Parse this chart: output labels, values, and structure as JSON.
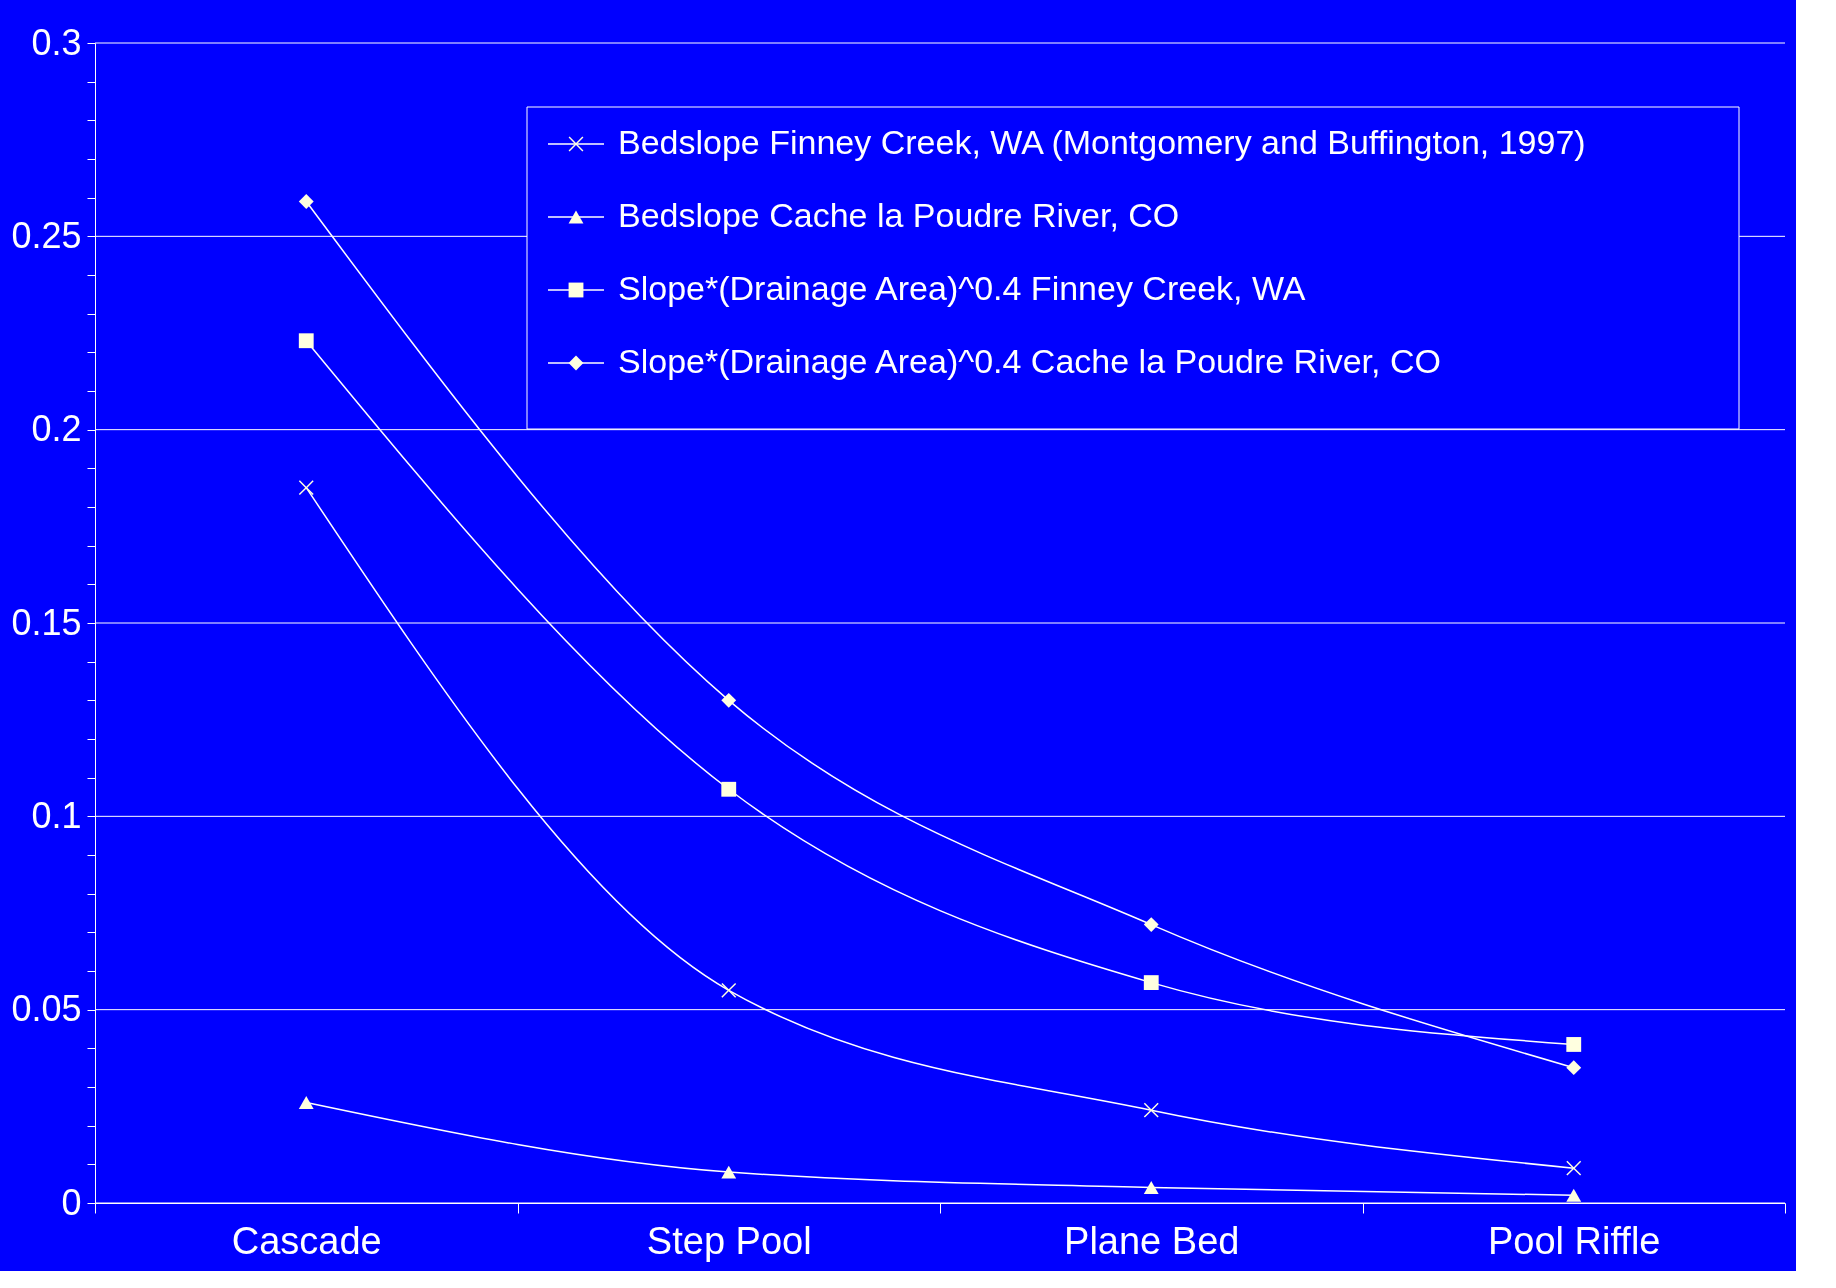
{
  "chart_data": {
    "type": "line",
    "categories": [
      "Cascade",
      "Step Pool",
      "Plane Bed",
      "Pool Riffle"
    ],
    "series": [
      {
        "name": "Bedslope   Finney Creek, WA (Montgomery and Buffington, 1997)",
        "color": "#ffffff",
        "marker": "cross",
        "values": [
          0.185,
          0.055,
          0.024,
          0.009
        ]
      },
      {
        "name": "Bedslope   Cache la Poudre River, CO",
        "color": "#ffffff",
        "marker": "triangle",
        "values": [
          0.026,
          0.008,
          0.004,
          0.002
        ]
      },
      {
        "name": "Slope*(Drainage Area)^0.4    Finney Creek, WA",
        "color": "#ffffff",
        "marker": "square",
        "values": [
          0.223,
          0.107,
          0.057,
          0.041
        ]
      },
      {
        "name": "Slope*(Drainage Area)^0.4    Cache la Poudre River, CO",
        "color": "#ffffff",
        "marker": "diamond",
        "values": [
          0.259,
          0.13,
          0.072,
          0.035
        ]
      }
    ],
    "ylim": [
      0,
      0.3
    ],
    "yticks": [
      0,
      {
        "value": 0.01,
        "label": null
      },
      {
        "value": 0.02,
        "label": null
      },
      {
        "value": 0.03,
        "label": null
      },
      {
        "value": 0.04,
        "label": null
      },
      0.05,
      {
        "value": 0.06,
        "label": null
      },
      {
        "value": 0.07,
        "label": null
      },
      {
        "value": 0.08,
        "label": null
      },
      {
        "value": 0.09,
        "label": null
      },
      0.1,
      {
        "value": 0.11,
        "label": null
      },
      {
        "value": 0.12,
        "label": null
      },
      {
        "value": 0.13,
        "label": null
      },
      {
        "value": 0.14,
        "label": null
      },
      0.15,
      {
        "value": 0.16,
        "label": null
      },
      {
        "value": 0.17,
        "label": null
      },
      {
        "value": 0.18,
        "label": null
      },
      {
        "value": 0.19,
        "label": null
      },
      0.2,
      {
        "value": 0.21,
        "label": null
      },
      {
        "value": 0.22,
        "label": null
      },
      {
        "value": 0.23,
        "label": null
      },
      {
        "value": 0.24,
        "label": null
      },
      0.25,
      {
        "value": 0.26,
        "label": null
      },
      {
        "value": 0.27,
        "label": null
      },
      {
        "value": 0.28,
        "label": null
      },
      {
        "value": 0.29,
        "label": null
      },
      0.3
    ],
    "grid": "y",
    "legend": "top right",
    "line_style": "solid"
  }
}
